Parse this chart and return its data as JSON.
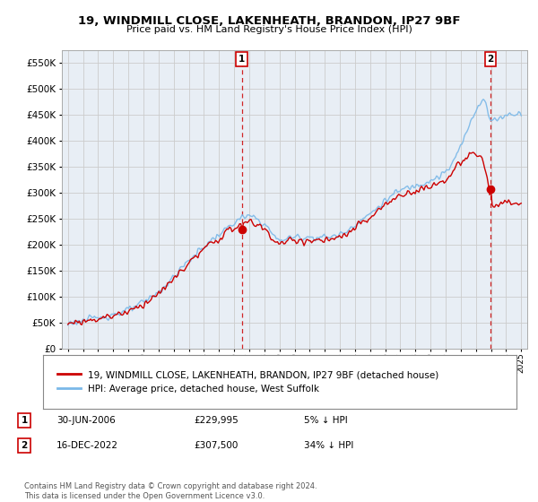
{
  "title": "19, WINDMILL CLOSE, LAKENHEATH, BRANDON, IP27 9BF",
  "subtitle": "Price paid vs. HM Land Registry's House Price Index (HPI)",
  "legend_line1": "19, WINDMILL CLOSE, LAKENHEATH, BRANDON, IP27 9BF (detached house)",
  "legend_line2": "HPI: Average price, detached house, West Suffolk",
  "annotation1_label": "1",
  "annotation1_date": "30-JUN-2006",
  "annotation1_price": "£229,995",
  "annotation1_hpi": "5% ↓ HPI",
  "annotation2_label": "2",
  "annotation2_date": "16-DEC-2022",
  "annotation2_price": "£307,500",
  "annotation2_hpi": "34% ↓ HPI",
  "footer": "Contains HM Land Registry data © Crown copyright and database right 2024.\nThis data is licensed under the Open Government Licence v3.0.",
  "hpi_color": "#7ab8e8",
  "price_color": "#cc0000",
  "vline_color": "#cc0000",
  "grid_color": "#cccccc",
  "bg_color": "#ffffff",
  "plot_bg_color": "#e8eef5",
  "ylim": [
    0,
    575000
  ],
  "yticks": [
    0,
    50000,
    100000,
    150000,
    200000,
    250000,
    300000,
    350000,
    400000,
    450000,
    500000,
    550000
  ],
  "year_start": 1995,
  "year_end": 2025,
  "transaction1_year": 2006.5,
  "transaction1_price": 229995,
  "transaction2_year": 2022.958,
  "transaction2_price": 307500
}
